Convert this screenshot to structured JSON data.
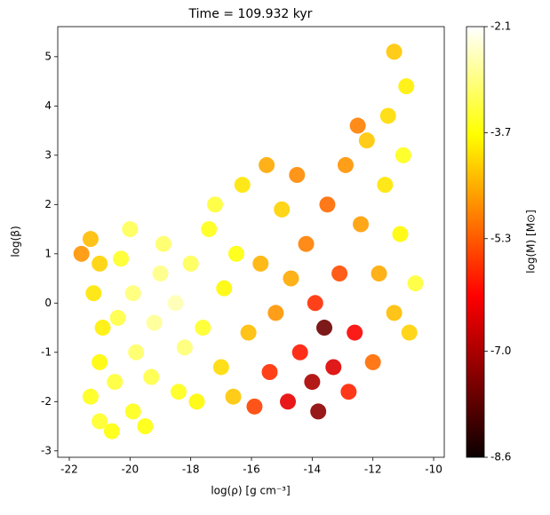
{
  "chart_data": {
    "type": "scatter",
    "title": "Time = 109.932 kyr",
    "x_label": "log(ρ) [g cm⁻³]",
    "y_label": "log(β)",
    "colorbar_label": "log(M) [M⊙]",
    "colormap": "hot",
    "x": [
      -21.6,
      -21.3,
      -21.0,
      -21.2,
      -20.9,
      -21.0,
      -21.3,
      -21.0,
      -20.6,
      -20.5,
      -20.4,
      -20.3,
      -20.0,
      -19.9,
      -19.8,
      -19.9,
      -19.5,
      -19.3,
      -19.2,
      -19.0,
      -18.9,
      -18.5,
      -18.4,
      -18.2,
      -18.0,
      -17.8,
      -17.6,
      -17.4,
      -17.2,
      -17.0,
      -16.9,
      -16.6,
      -16.5,
      -16.3,
      -16.1,
      -15.9,
      -15.7,
      -15.5,
      -15.4,
      -15.2,
      -15.0,
      -14.8,
      -14.7,
      -14.5,
      -14.4,
      -14.2,
      -14.0,
      -13.9,
      -13.8,
      -13.6,
      -13.5,
      -13.3,
      -13.1,
      -12.9,
      -12.8,
      -12.6,
      -12.4,
      -12.2,
      -12.0,
      -11.8,
      -11.6,
      -11.5,
      -11.3,
      -11.1,
      -11.0,
      -10.9,
      -10.8,
      -10.6,
      -11.3,
      -12.5
    ],
    "y": [
      1.0,
      1.3,
      0.8,
      0.2,
      -0.5,
      -1.2,
      -1.9,
      -2.4,
      -2.6,
      -1.6,
      -0.3,
      0.9,
      1.5,
      0.2,
      -1.0,
      -2.2,
      -2.5,
      -1.5,
      -0.4,
      0.6,
      1.2,
      0.0,
      -1.8,
      -0.9,
      0.8,
      -2.0,
      -0.5,
      1.5,
      2.0,
      -1.3,
      0.3,
      -1.9,
      1.0,
      2.4,
      -0.6,
      -2.1,
      0.8,
      2.8,
      -1.4,
      -0.2,
      1.9,
      -2.0,
      0.5,
      2.6,
      -1.0,
      1.2,
      -1.6,
      0.0,
      -2.2,
      -0.5,
      2.0,
      -1.3,
      0.6,
      2.8,
      -1.8,
      -0.6,
      1.6,
      3.3,
      -1.2,
      0.6,
      2.4,
      3.8,
      -0.2,
      1.4,
      3.0,
      4.4,
      -0.6,
      0.4,
      5.1,
      3.6
    ],
    "c": [
      -4.8,
      -4.4,
      -4.2,
      -4.0,
      -3.9,
      -3.8,
      -3.6,
      -3.5,
      -3.7,
      -3.4,
      -3.3,
      -3.5,
      -3.2,
      -3.0,
      -3.1,
      -3.6,
      -3.7,
      -3.3,
      -2.8,
      -2.9,
      -3.1,
      -2.6,
      -3.6,
      -3.0,
      -3.2,
      -3.8,
      -3.5,
      -3.6,
      -3.4,
      -4.1,
      -3.8,
      -4.3,
      -3.7,
      -4.0,
      -4.4,
      -5.6,
      -4.5,
      -4.6,
      -5.8,
      -4.8,
      -4.2,
      -6.4,
      -4.6,
      -4.9,
      -6.0,
      -5.0,
      -7.0,
      -5.8,
      -7.3,
      -7.6,
      -5.2,
      -6.5,
      -5.5,
      -4.8,
      -5.9,
      -6.2,
      -4.7,
      -4.3,
      -5.2,
      -4.6,
      -4.0,
      -4.1,
      -4.4,
      -3.8,
      -3.6,
      -3.9,
      -4.2,
      -3.4,
      -4.3,
      -5.0
    ],
    "xlim": [
      -22.38,
      -9.65
    ],
    "ylim": [
      -3.13,
      5.61
    ],
    "clim": [
      -8.6,
      -2.1
    ],
    "xticks": [
      -22,
      -20,
      -18,
      -16,
      -14,
      -12,
      -10
    ],
    "yticks": [
      -3,
      -2,
      -1,
      0,
      1,
      2,
      3,
      4,
      5
    ],
    "cticks": [
      -2.1,
      -3.7,
      -5.3,
      {
        "value": -7.0,
        "label": "-7.0"
      },
      -8.6
    ]
  }
}
